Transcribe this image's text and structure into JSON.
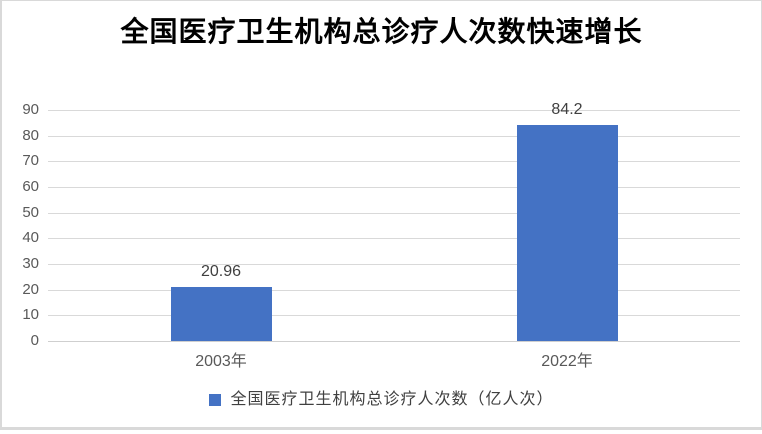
{
  "frame": {
    "background_color": "#ffffff",
    "border_color": "#d9d9d9"
  },
  "chart": {
    "title": "全国医疗卫生机构总诊疗人次数快速增长",
    "legend": {
      "label": "全国医疗卫生机构总诊疗人次数（亿人次）",
      "marker_color": "#4472c4",
      "position": "bottom"
    }
  },
  "chart_data": {
    "type": "bar",
    "title": "全国医疗卫生机构总诊疗人次数快速增长",
    "series_name": "全国医疗卫生机构总诊疗人次数（亿人次）",
    "categories": [
      "2003年",
      "2022年"
    ],
    "values": [
      20.96,
      84.2
    ],
    "data_labels": [
      "20.96",
      "84.2"
    ],
    "xlabel": "",
    "ylabel": "",
    "ylim": [
      0,
      90
    ],
    "yticks": [
      0,
      10,
      20,
      30,
      40,
      50,
      60,
      70,
      80,
      90
    ],
    "grid": true,
    "legend_position": "bottom",
    "colors": {
      "bar": "#4472c4",
      "gridline": "#d9d9d9",
      "axis_tick_label": "#595959",
      "data_label": "#404040",
      "title": "#000000"
    }
  }
}
